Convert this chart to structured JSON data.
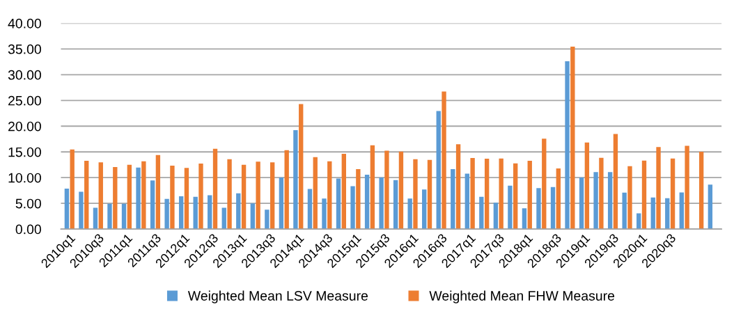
{
  "chart_data": {
    "type": "bar",
    "categories": [
      "2010q1",
      null,
      "2010q3",
      null,
      "2011q1",
      null,
      "2011q3",
      null,
      "2012q1",
      null,
      "2012q3",
      null,
      "2013q1",
      null,
      "2013q3",
      null,
      "2014q1",
      null,
      "2014q3",
      null,
      "2015q1",
      null,
      "2015q3",
      null,
      "2016q1",
      null,
      "2016q3",
      null,
      "2017q1",
      null,
      "2017q3",
      null,
      "2018q1",
      null,
      "2018q3",
      null,
      "2019q1",
      null,
      "2019q3",
      null,
      "2020q1",
      null,
      "2020q3",
      null,
      null,
      null
    ],
    "series": [
      {
        "name": "Weighted Mean LSV Measure",
        "color": "#5b9bd5",
        "values": [
          7.85,
          7.26,
          4.13,
          4.93,
          4.93,
          11.97,
          9.46,
          5.87,
          6.37,
          6.28,
          6.59,
          4.13,
          6.95,
          5.0,
          3.77,
          10.04,
          19.24,
          7.8,
          5.92,
          9.82,
          8.34,
          10.58,
          10.04,
          9.51,
          5.92,
          7.71,
          22.96,
          11.66,
          10.76,
          6.28,
          5.11,
          8.43,
          4.04,
          7.98,
          8.16,
          32.6,
          10.04,
          11.08,
          11.08,
          7.09,
          3.05,
          6.14,
          6.0,
          7.13,
          null,
          8.65
        ]
      },
      {
        "name": "Weighted Mean FHW Measure",
        "color": "#ed7d31",
        "values": [
          15.47,
          13.27,
          12.96,
          12.06,
          12.51,
          13.18,
          14.39,
          12.33,
          11.88,
          12.74,
          15.6,
          13.59,
          12.51,
          13.09,
          12.96,
          15.34,
          24.3,
          13.99,
          13.18,
          14.62,
          11.66,
          16.28,
          15.25,
          15.07,
          13.59,
          13.45,
          26.73,
          16.5,
          13.81,
          13.68,
          13.72,
          12.78,
          13.27,
          17.58,
          11.79,
          35.47,
          16.82,
          13.86,
          18.48,
          12.24,
          13.32,
          15.96,
          13.72,
          16.19,
          15.02,
          null
        ]
      }
    ],
    "ylim": [
      0,
      40
    ],
    "yticks": [
      {
        "value": 0,
        "label": "0.00"
      },
      {
        "value": 5,
        "label": "5.00"
      },
      {
        "value": 10,
        "label": "10.00"
      },
      {
        "value": 15,
        "label": "15.00"
      },
      {
        "value": 20,
        "label": "20.00"
      },
      {
        "value": 25,
        "label": "25.00"
      },
      {
        "value": 30,
        "label": "30.00"
      },
      {
        "value": 35,
        "label": "35.00"
      },
      {
        "value": 40,
        "label": "40.00"
      }
    ],
    "grid": "y",
    "legend": "bottom"
  }
}
